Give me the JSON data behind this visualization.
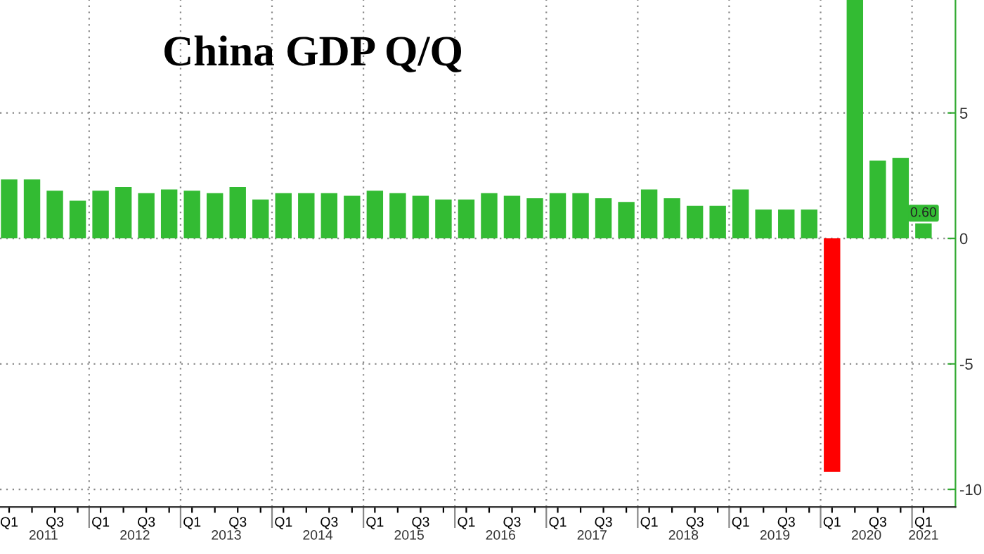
{
  "chart_data": {
    "type": "bar",
    "title": "China GDP Q/Q",
    "categories": [
      "Q1",
      null,
      "Q3",
      null,
      "Q1",
      null,
      "Q3",
      null,
      "Q1",
      null,
      "Q3",
      null,
      "Q1",
      null,
      "Q3",
      null,
      "Q1",
      null,
      "Q3",
      null,
      "Q1",
      null,
      "Q3",
      null,
      "Q1",
      null,
      "Q3",
      null,
      "Q1",
      null,
      "Q3",
      null,
      "Q1",
      null,
      "Q3",
      null,
      "Q1",
      null,
      "Q3",
      null,
      "Q1"
    ],
    "values": [
      2.35,
      2.35,
      1.9,
      1.5,
      1.9,
      2.05,
      1.8,
      1.95,
      1.9,
      1.8,
      2.05,
      1.55,
      1.8,
      1.8,
      1.8,
      1.7,
      1.9,
      1.8,
      1.7,
      1.55,
      1.55,
      1.8,
      1.7,
      1.6,
      1.8,
      1.8,
      1.6,
      1.45,
      1.95,
      1.6,
      1.3,
      1.3,
      1.95,
      1.15,
      1.15,
      1.15,
      -9.3,
      9.5,
      3.1,
      3.2,
      0.6
    ],
    "colors": [
      "#33bb33",
      "#33bb33",
      "#33bb33",
      "#33bb33",
      "#33bb33",
      "#33bb33",
      "#33bb33",
      "#33bb33",
      "#33bb33",
      "#33bb33",
      "#33bb33",
      "#33bb33",
      "#33bb33",
      "#33bb33",
      "#33bb33",
      "#33bb33",
      "#33bb33",
      "#33bb33",
      "#33bb33",
      "#33bb33",
      "#33bb33",
      "#33bb33",
      "#33bb33",
      "#33bb33",
      "#33bb33",
      "#33bb33",
      "#33bb33",
      "#33bb33",
      "#33bb33",
      "#33bb33",
      "#33bb33",
      "#33bb33",
      "#33bb33",
      "#33bb33",
      "#33bb33",
      "#33bb33",
      "#ff0000",
      "#33bb33",
      "#33bb33",
      "#33bb33",
      "#33bb33"
    ],
    "value_labels": [
      null,
      null,
      null,
      null,
      null,
      null,
      null,
      null,
      null,
      null,
      null,
      null,
      null,
      null,
      null,
      null,
      null,
      null,
      null,
      null,
      null,
      null,
      null,
      null,
      null,
      null,
      null,
      null,
      null,
      null,
      null,
      null,
      null,
      null,
      null,
      null,
      null,
      null,
      null,
      null,
      "0.60"
    ],
    "annotations": [
      "2011",
      "2012",
      "2013",
      "2014",
      "2015",
      "2016",
      "2017",
      "2018",
      "2019",
      "2020",
      "2021"
    ],
    "ylim": [
      -10.7,
      9.5
    ],
    "yticks": [
      -10,
      -5,
      0,
      5
    ],
    "grid": true
  }
}
